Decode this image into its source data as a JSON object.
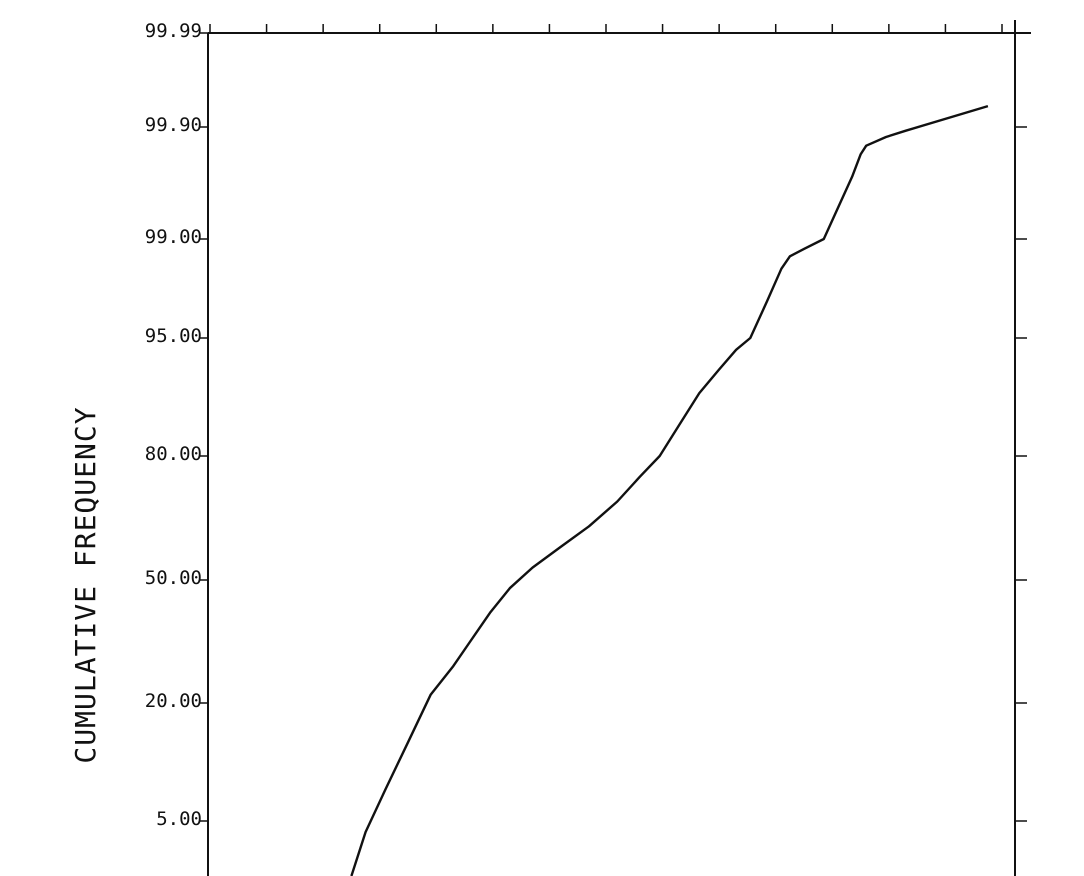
{
  "chart_data": {
    "type": "line",
    "title": "",
    "xlabel": "",
    "ylabel": "CUMULATIVE FREQUENCY",
    "y_scale": "probability",
    "y_ticks": [
      {
        "value": 99.99,
        "label": "99.99"
      },
      {
        "value": 99.9,
        "label": "99.90"
      },
      {
        "value": 99.0,
        "label": "99.00"
      },
      {
        "value": 95.0,
        "label": "95.00"
      },
      {
        "value": 80.0,
        "label": "80.00"
      },
      {
        "value": 50.0,
        "label": "50.00"
      },
      {
        "value": 20.0,
        "label": "20.00"
      },
      {
        "value": 5.0,
        "label": "5.00"
      }
    ],
    "ylim": [
      2.5,
      99.99
    ],
    "x_tick_count": 14,
    "xlim": [
      0,
      14
    ],
    "grid": false,
    "series": [
      {
        "values_x": [
          2.5,
          2.75,
          3.1,
          3.5,
          3.9,
          4.3,
          4.6,
          4.95,
          5.3,
          5.7,
          6.2,
          6.7,
          7.2,
          7.6,
          7.95,
          8.3,
          8.65,
          9.0,
          9.3,
          9.55,
          9.85,
          10.1,
          10.25,
          10.5,
          10.85,
          11.05,
          11.35,
          11.5,
          11.6,
          11.95,
          12.3,
          13.75
        ],
        "values_y": [
          2.5,
          4.5,
          9.0,
          15.0,
          22.0,
          29.0,
          35.0,
          42.0,
          48.0,
          53.0,
          58.0,
          63.0,
          69.0,
          75.0,
          80.0,
          84.0,
          88.0,
          91.0,
          93.5,
          95.0,
          96.5,
          97.8,
          98.3,
          98.6,
          99.0,
          99.2,
          99.5,
          99.68,
          99.75,
          99.82,
          99.87,
          99.92
        ]
      }
    ]
  }
}
